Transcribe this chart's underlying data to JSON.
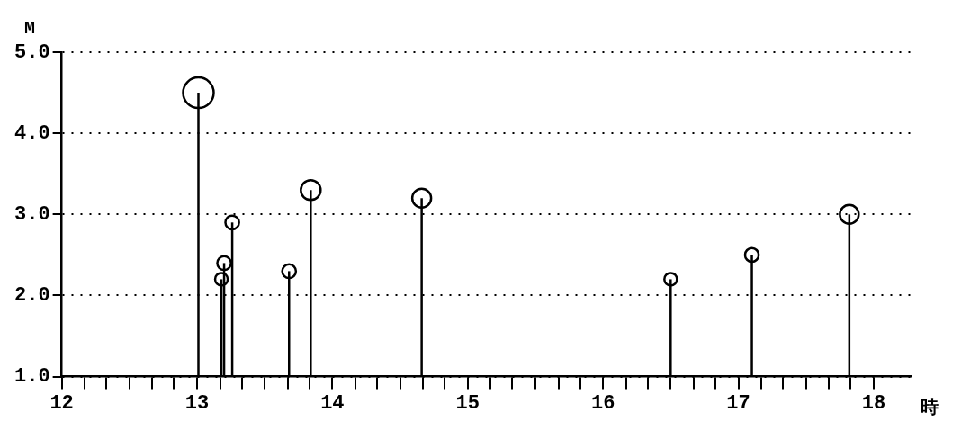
{
  "chart_data": {
    "type": "lollipop",
    "xlabel": "時",
    "ylabel": "M",
    "x": [
      13.01,
      13.18,
      13.2,
      13.26,
      13.68,
      13.84,
      14.66,
      16.5,
      17.1,
      17.82
    ],
    "values": [
      4.5,
      2.2,
      2.4,
      2.9,
      2.3,
      3.3,
      3.2,
      2.2,
      2.5,
      3.0
    ],
    "sizes": [
      1,
      0.17,
      0.2,
      0.2,
      0.2,
      0.42,
      0.38,
      0.17,
      0.2,
      0.38
    ],
    "color": "#000000",
    "marker": "circle",
    "xlim": [
      12,
      18.28
    ],
    "xticks": [
      12,
      {
        "value": 12.17,
        "label": null
      },
      {
        "value": 12.33,
        "label": null
      },
      {
        "value": 12.5,
        "label": null
      },
      {
        "value": 12.67,
        "label": null
      },
      {
        "value": 12.83,
        "label": null
      },
      13,
      {
        "value": 13.17,
        "label": null
      },
      {
        "value": 13.33,
        "label": null
      },
      {
        "value": 13.5,
        "label": null
      },
      {
        "value": 13.67,
        "label": null
      },
      {
        "value": 13.83,
        "label": null
      },
      14,
      {
        "value": 14.17,
        "label": null
      },
      {
        "value": 14.33,
        "label": null
      },
      {
        "value": 14.5,
        "label": null
      },
      {
        "value": 14.67,
        "label": null
      },
      {
        "value": 14.83,
        "label": null
      },
      15,
      {
        "value": 15.17,
        "label": null
      },
      {
        "value": 15.33,
        "label": null
      },
      {
        "value": 15.5,
        "label": null
      },
      {
        "value": 15.67,
        "label": null
      },
      {
        "value": 15.83,
        "label": null
      },
      16,
      {
        "value": 16.17,
        "label": null
      },
      {
        "value": 16.33,
        "label": null
      },
      {
        "value": 16.5,
        "label": null
      },
      {
        "value": 16.67,
        "label": null
      },
      {
        "value": 16.83,
        "label": null
      },
      17,
      {
        "value": 17.17,
        "label": null
      },
      {
        "value": 17.33,
        "label": null
      },
      {
        "value": 17.5,
        "label": null
      },
      {
        "value": 17.67,
        "label": null
      },
      {
        "value": 17.83,
        "label": null
      },
      18
    ],
    "ylim": [
      1,
      5
    ],
    "yticks": [
      {
        "value": 1,
        "label": "1.0"
      },
      {
        "value": 2,
        "label": "2.0"
      },
      {
        "value": 3,
        "label": "3.0"
      },
      {
        "value": 4,
        "label": "4.0"
      },
      {
        "value": 5,
        "label": "5.0"
      }
    ],
    "grid": "y",
    "legend": false
  }
}
